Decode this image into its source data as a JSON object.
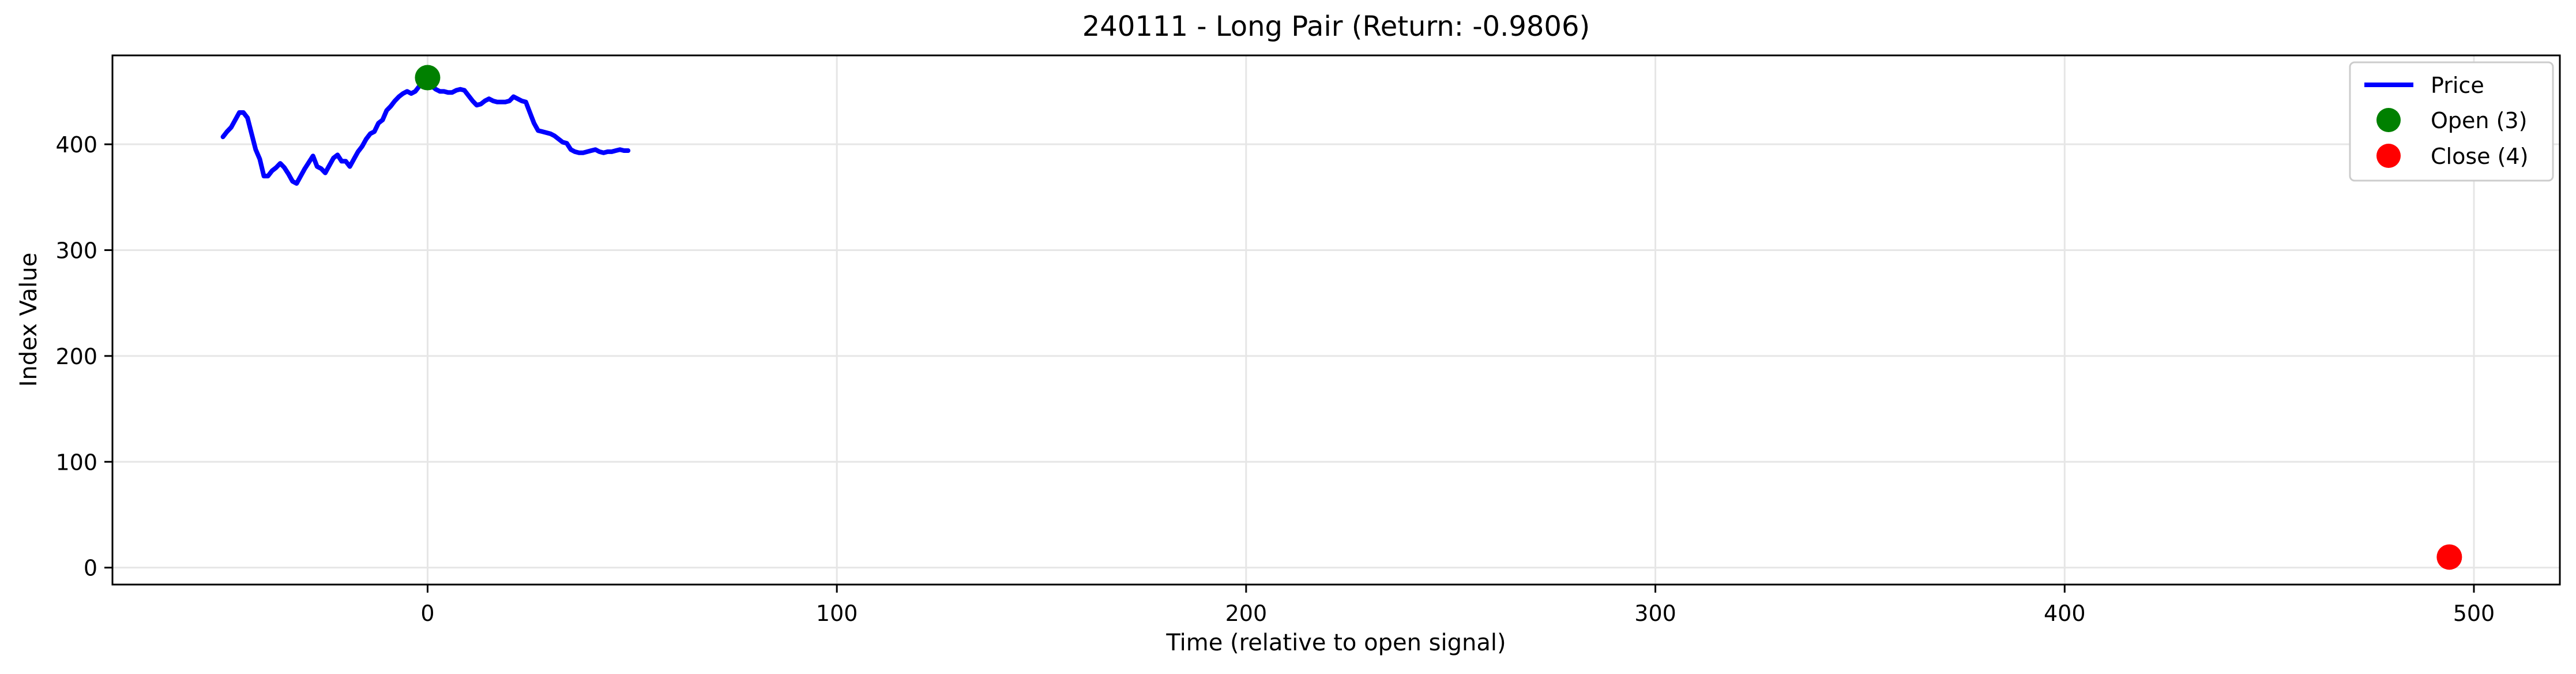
{
  "chart_data": {
    "type": "line",
    "title": "240111 - Long Pair (Return: -0.9806)",
    "xlabel": "Time (relative to open signal)",
    "ylabel": "Index Value",
    "xlim": [
      -77,
      521
    ],
    "ylim": [
      -16,
      484
    ],
    "x_ticks": [
      0,
      100,
      200,
      300,
      400,
      500
    ],
    "y_ticks": [
      0,
      100,
      200,
      300,
      400
    ],
    "grid": true,
    "legend_position": "top-right",
    "series": [
      {
        "name": "Price",
        "color": "#0000ff",
        "x": [
          -50,
          -49,
          -48,
          -47,
          -46,
          -45,
          -44,
          -43,
          -42,
          -41,
          -40,
          -39,
          -38,
          -37,
          -36,
          -35,
          -34,
          -33,
          -32,
          -31,
          -30,
          -29,
          -28,
          -27,
          -26,
          -25,
          -24,
          -23,
          -22,
          -21,
          -20,
          -19,
          -18,
          -17,
          -16,
          -15,
          -14,
          -13,
          -12,
          -11,
          -10,
          -9,
          -8,
          -7,
          -6,
          -5,
          -4,
          -3,
          -2,
          -1,
          0,
          1,
          2,
          3,
          4,
          5,
          6,
          7,
          8,
          9,
          10,
          11,
          12,
          13,
          14,
          15,
          16,
          17,
          18,
          19,
          20,
          21,
          22,
          23,
          24,
          25,
          26,
          27,
          28,
          29,
          30,
          31,
          32,
          33,
          34,
          35,
          36,
          37,
          38,
          39,
          40,
          41,
          42,
          43,
          44,
          45,
          46,
          47,
          48,
          49
        ],
        "y": [
          407,
          412,
          416,
          423,
          430,
          430,
          425,
          410,
          395,
          386,
          370,
          370,
          375,
          378,
          382,
          378,
          372,
          365,
          363,
          370,
          377,
          383,
          389,
          379,
          377,
          373,
          380,
          387,
          390,
          384,
          384,
          379,
          386,
          393,
          398,
          405,
          410,
          412,
          420,
          423,
          432,
          436,
          441,
          445,
          448,
          450,
          448,
          450,
          455,
          460,
          462,
          455,
          452,
          450,
          450,
          449,
          449,
          451,
          452,
          451,
          446,
          441,
          437,
          438,
          441,
          443,
          441,
          440,
          440,
          440,
          441,
          445,
          443,
          441,
          440,
          430,
          420,
          413,
          412,
          411,
          410,
          408,
          405,
          402,
          401,
          395,
          393,
          392,
          392,
          393,
          394,
          395,
          393,
          392,
          393,
          393,
          394,
          395,
          394,
          394
        ]
      },
      {
        "name": "Open (3)",
        "type": "scatter",
        "color": "#008000",
        "x": [
          0
        ],
        "y": [
          463
        ]
      },
      {
        "name": "Close (4)",
        "type": "scatter",
        "color": "#ff0000",
        "x": [
          494
        ],
        "y": [
          10
        ]
      }
    ]
  }
}
